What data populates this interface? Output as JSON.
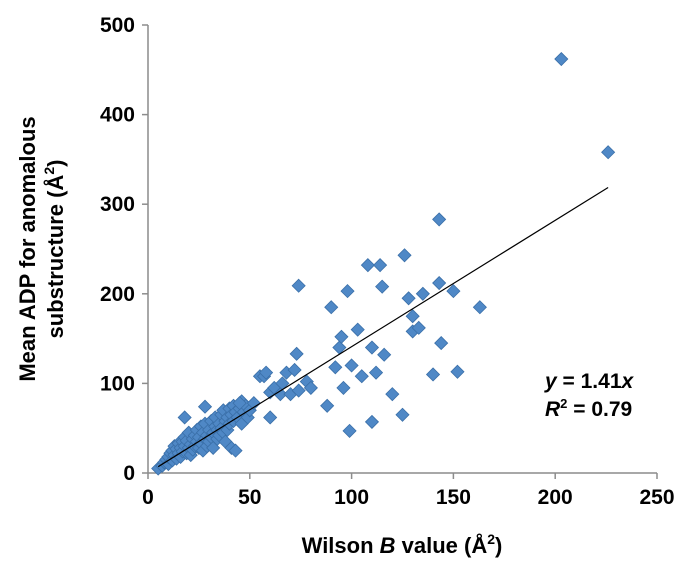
{
  "chart_data": {
    "type": "scatter",
    "xlabel_parts": [
      "Wilson ",
      "B",
      " value (Å",
      "2",
      ")"
    ],
    "ylabel_line1": "Mean ADP for anomalous",
    "ylabel_line2_parts": [
      "substructure (Å",
      "2",
      ")"
    ],
    "xlim": [
      0,
      250
    ],
    "ylim": [
      0,
      500
    ],
    "x_ticks": [
      0,
      50,
      100,
      150,
      200,
      250
    ],
    "y_ticks": [
      0,
      100,
      200,
      300,
      400,
      500
    ],
    "x_tick_labels": [
      "0",
      "50",
      "100",
      "150",
      "200",
      "250"
    ],
    "y_tick_labels": [
      "0",
      "100",
      "200",
      "300",
      "400",
      "500"
    ],
    "grid": false,
    "marker_color": "#4f88c6",
    "marker_edge_color": "#3a6fa8",
    "trendline": {
      "slope": 1.41,
      "x_range": [
        5,
        226
      ],
      "color": "#000000"
    },
    "annotation_eq_parts": [
      "y",
      " = 1.41",
      "x"
    ],
    "annotation_r2_parts": [
      "R",
      "2",
      " = 0.79"
    ],
    "points": [
      [
        5,
        5
      ],
      [
        7,
        8
      ],
      [
        8,
        12
      ],
      [
        9,
        15
      ],
      [
        10,
        10
      ],
      [
        10,
        18
      ],
      [
        11,
        22
      ],
      [
        12,
        14
      ],
      [
        12,
        25
      ],
      [
        13,
        20
      ],
      [
        13,
        30
      ],
      [
        14,
        16
      ],
      [
        14,
        27
      ],
      [
        15,
        33
      ],
      [
        15,
        22
      ],
      [
        16,
        28
      ],
      [
        16,
        18
      ],
      [
        17,
        35
      ],
      [
        17,
        24
      ],
      [
        18,
        30
      ],
      [
        18,
        40
      ],
      [
        19,
        22
      ],
      [
        19,
        36
      ],
      [
        20,
        28
      ],
      [
        20,
        45
      ],
      [
        21,
        32
      ],
      [
        21,
        20
      ],
      [
        22,
        38
      ],
      [
        22,
        26
      ],
      [
        23,
        42
      ],
      [
        23,
        30
      ],
      [
        24,
        35
      ],
      [
        24,
        48
      ],
      [
        25,
        28
      ],
      [
        25,
        40
      ],
      [
        26,
        52
      ],
      [
        26,
        33
      ],
      [
        27,
        45
      ],
      [
        27,
        25
      ],
      [
        28,
        38
      ],
      [
        28,
        55
      ],
      [
        29,
        42
      ],
      [
        29,
        30
      ],
      [
        30,
        48
      ],
      [
        30,
        35
      ],
      [
        31,
        58
      ],
      [
        31,
        40
      ],
      [
        32,
        45
      ],
      [
        32,
        28
      ],
      [
        33,
        52
      ],
      [
        33,
        62
      ],
      [
        34,
        38
      ],
      [
        34,
        48
      ],
      [
        35,
        55
      ],
      [
        35,
        42
      ],
      [
        36,
        65
      ],
      [
        36,
        50
      ],
      [
        37,
        45
      ],
      [
        37,
        70
      ],
      [
        38,
        58
      ],
      [
        38,
        35
      ],
      [
        39,
        62
      ],
      [
        39,
        48
      ],
      [
        40,
        72
      ],
      [
        40,
        55
      ],
      [
        41,
        28
      ],
      [
        41,
        65
      ],
      [
        42,
        58
      ],
      [
        42,
        75
      ],
      [
        43,
        68
      ],
      [
        43,
        25
      ],
      [
        44,
        62
      ],
      [
        45,
        72
      ],
      [
        46,
        55
      ],
      [
        46,
        80
      ],
      [
        47,
        68
      ],
      [
        48,
        75
      ],
      [
        49,
        62
      ],
      [
        50,
        70
      ],
      [
        52,
        78
      ],
      [
        18,
        62
      ],
      [
        28,
        74
      ],
      [
        45,
        78
      ],
      [
        55,
        108
      ],
      [
        57,
        108
      ],
      [
        58,
        112
      ],
      [
        60,
        62
      ],
      [
        60,
        90
      ],
      [
        62,
        95
      ],
      [
        65,
        88
      ],
      [
        66,
        100
      ],
      [
        68,
        112
      ],
      [
        70,
        88
      ],
      [
        72,
        115
      ],
      [
        73,
        133
      ],
      [
        74,
        92
      ],
      [
        74,
        209
      ],
      [
        78,
        102
      ],
      [
        80,
        95
      ],
      [
        88,
        75
      ],
      [
        90,
        185
      ],
      [
        92,
        118
      ],
      [
        94,
        140
      ],
      [
        95,
        152
      ],
      [
        96,
        95
      ],
      [
        98,
        203
      ],
      [
        99,
        47
      ],
      [
        100,
        120
      ],
      [
        103,
        160
      ],
      [
        105,
        108
      ],
      [
        108,
        232
      ],
      [
        110,
        57
      ],
      [
        110,
        140
      ],
      [
        112,
        112
      ],
      [
        114,
        232
      ],
      [
        115,
        208
      ],
      [
        116,
        132
      ],
      [
        120,
        88
      ],
      [
        125,
        65
      ],
      [
        126,
        243
      ],
      [
        128,
        195
      ],
      [
        130,
        175
      ],
      [
        130,
        158
      ],
      [
        133,
        162
      ],
      [
        135,
        200
      ],
      [
        140,
        110
      ],
      [
        143,
        283
      ],
      [
        144,
        145
      ],
      [
        143,
        212
      ],
      [
        150,
        203
      ],
      [
        152,
        113
      ],
      [
        163,
        185
      ],
      [
        203,
        462
      ],
      [
        226,
        358
      ]
    ]
  }
}
